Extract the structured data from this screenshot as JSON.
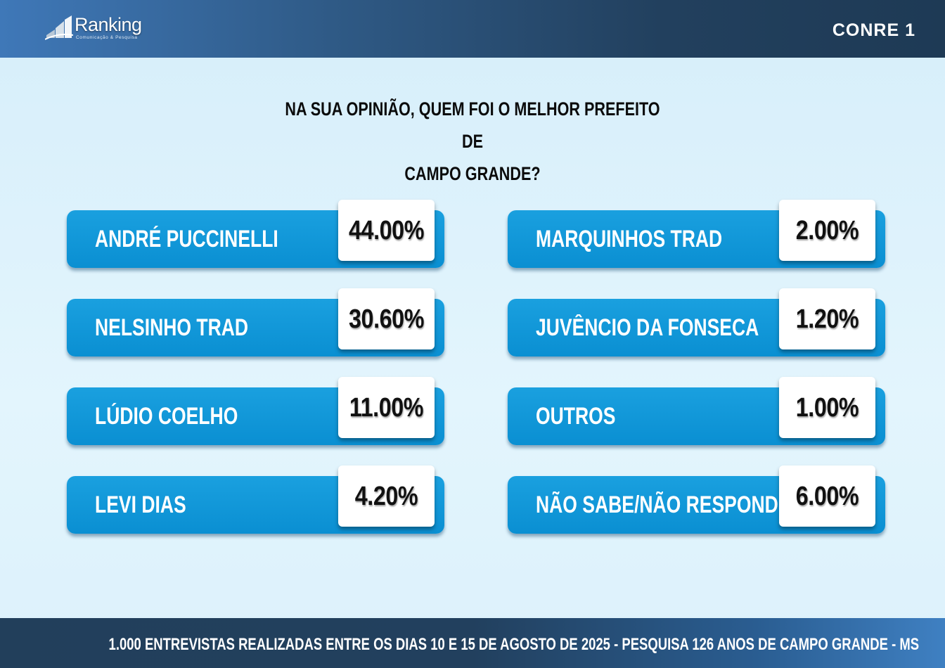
{
  "header": {
    "brand_left": {
      "name": "Ranking",
      "tagline": "Comunicação & Pesquisa"
    },
    "brand_right": {
      "name": "CONRE 1"
    }
  },
  "chart_data": {
    "type": "table",
    "title": "NA SUA OPINIÃO, QUEM FOI O MELHOR PREFEITO DE CAMPO GRANDE?",
    "title_lines": [
      "NA SUA OPINIÃO, QUEM FOI O MELHOR PREFEITO DE",
      "CAMPO GRANDE?"
    ],
    "categories": [
      "ANDRÉ PUCCINELLI",
      "NELSINHO TRAD",
      "LÚDIO COELHO",
      "LEVI DIAS",
      "MARQUINHOS TRAD",
      "JUVÊNCIO DA FONSECA",
      "OUTROS",
      "NÃO SABE/NÃO RESPONDEU"
    ],
    "values": [
      44.0,
      30.6,
      11.0,
      4.2,
      2.0,
      1.2,
      1.0,
      6.0
    ],
    "value_labels": [
      "44.00%",
      "30.60%",
      "11.00%",
      "4.20%",
      "2.00%",
      "1.20%",
      "1.00%",
      "6.00%"
    ],
    "unit": "%"
  },
  "footer": {
    "text": "1.000 ENTREVISTAS REALIZADAS ENTRE OS DIAS 10 E 15 DE AGOSTO DE 2025  - PESQUISA 126 ANOS DE CAMPO GRANDE - MS"
  },
  "colors": {
    "bar": "#0a8fd2",
    "header": "#22405e",
    "background": "#dcf1fb"
  }
}
